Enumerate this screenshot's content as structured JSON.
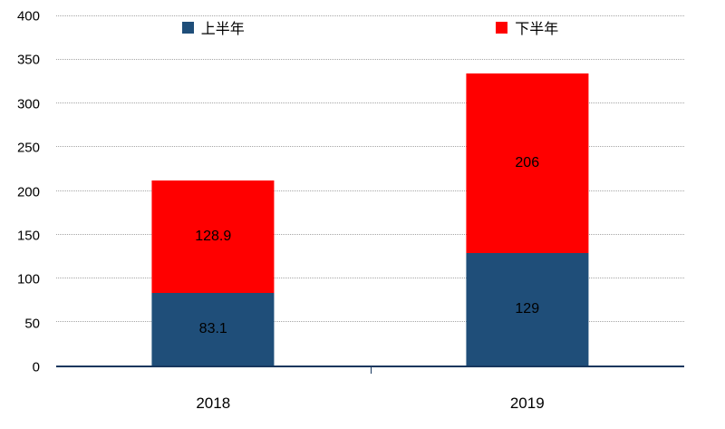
{
  "chart_data": {
    "type": "bar",
    "stacked": true,
    "categories": [
      "2018",
      "2019"
    ],
    "series": [
      {
        "name": "上半年",
        "color": "#1F4E79",
        "values": [
          83.1,
          129
        ],
        "labels": [
          "83.1",
          "129"
        ]
      },
      {
        "name": "下半年",
        "color": "#FF0000",
        "values": [
          128.9,
          206
        ],
        "labels": [
          "128.9",
          "206"
        ]
      }
    ],
    "ylim": [
      0,
      400
    ],
    "yticks": [
      0,
      50,
      100,
      150,
      200,
      250,
      300,
      350,
      400
    ],
    "grid": "horizontal-dotted",
    "legend_position": "top",
    "xlabel": "",
    "ylabel": ""
  }
}
